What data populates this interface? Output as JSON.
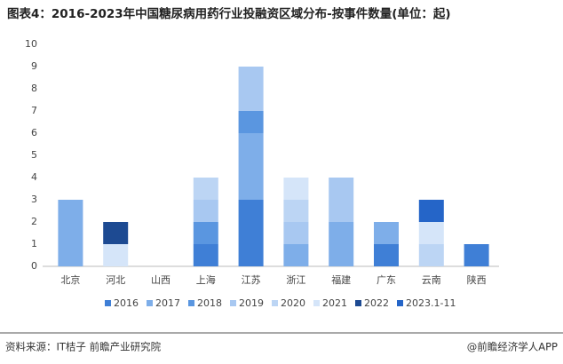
{
  "chart_data": {
    "type": "stacked_bar",
    "title": "图表4：2016-2023年中国糖尿病用药行业投融资区域分布-按事件数量(单位：起)",
    "categories": [
      "北京",
      "河北",
      "山西",
      "上海",
      "江苏",
      "浙江",
      "福建",
      "广东",
      "云南",
      "陕西"
    ],
    "series": [
      {
        "name": "2016",
        "color": "#3f7fd6",
        "values": [
          0,
          0,
          0,
          1,
          3,
          0,
          0,
          1,
          0,
          1
        ]
      },
      {
        "name": "2017",
        "color": "#7eaee9",
        "values": [
          3,
          0,
          0,
          0,
          3,
          1,
          2,
          1,
          0,
          0
        ]
      },
      {
        "name": "2018",
        "color": "#5a96e0",
        "values": [
          0,
          0,
          0,
          1,
          1,
          0,
          0,
          0,
          0,
          0
        ]
      },
      {
        "name": "2019",
        "color": "#a8c8f1",
        "values": [
          0,
          0,
          0,
          1,
          2,
          1,
          2,
          0,
          0,
          0
        ]
      },
      {
        "name": "2020",
        "color": "#bcd5f4",
        "values": [
          0,
          0,
          0,
          1,
          0,
          1,
          0,
          0,
          1,
          0
        ]
      },
      {
        "name": "2021",
        "color": "#d5e5f9",
        "values": [
          0,
          1,
          0,
          0,
          0,
          1,
          0,
          0,
          1,
          0
        ]
      },
      {
        "name": "2022",
        "color": "#1d4a92",
        "values": [
          0,
          1,
          0,
          0,
          0,
          0,
          0,
          0,
          0,
          0
        ]
      },
      {
        "name": "2023.1-11",
        "color": "#2565c8",
        "values": [
          0,
          0,
          0,
          0,
          0,
          0,
          0,
          0,
          1,
          0
        ]
      }
    ],
    "ylim": [
      0,
      10
    ],
    "yticks": [
      0,
      1,
      2,
      3,
      4,
      5,
      6,
      7,
      8,
      9,
      10
    ],
    "grid": false,
    "source": "资料来源：IT桔子 前瞻产业研究院",
    "credit": "@前瞻经济学人APP"
  }
}
